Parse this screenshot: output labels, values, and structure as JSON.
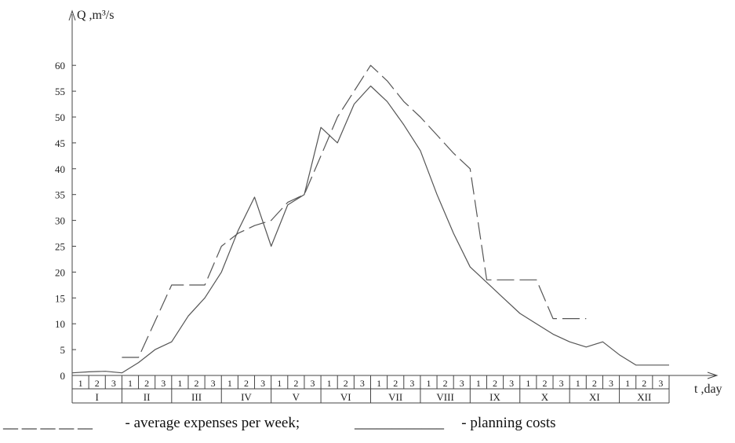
{
  "chart_data": {
    "type": "line",
    "ylabel": "Q ,m³/s",
    "xlabel": "t ,day",
    "ylim": [
      0,
      65
    ],
    "yticks": [
      0,
      5,
      10,
      15,
      20,
      25,
      30,
      35,
      40,
      45,
      50,
      55,
      60
    ],
    "x_unit": "decade (10-day period)",
    "decade_labels": [
      "1",
      "2",
      "3"
    ],
    "month_labels": [
      "I",
      "II",
      "III",
      "IV",
      "V",
      "VI",
      "VII",
      "VIII",
      "IX",
      "X",
      "XI",
      "XII"
    ],
    "series": [
      {
        "style": "solid",
        "x": [
          0,
          1,
          2,
          3,
          4,
          5,
          6,
          7,
          8,
          9,
          10,
          11,
          12,
          13,
          14,
          15,
          16,
          17,
          18,
          19,
          20,
          21,
          22,
          23,
          24,
          25,
          26,
          27,
          28,
          29,
          30,
          31,
          32,
          33,
          34,
          35,
          36
        ],
        "y": [
          0.5,
          0.7,
          0.8,
          0.5,
          2.5,
          5,
          6.5,
          11.5,
          15,
          20,
          28,
          34.5,
          25,
          33,
          35,
          48,
          45,
          52.5,
          56,
          53,
          48.5,
          43.5,
          35,
          27.5,
          21,
          18,
          15,
          12,
          10,
          8,
          6.5,
          5.5,
          6.5,
          4,
          2,
          2,
          2
        ]
      },
      {
        "style": "dashed",
        "x": [
          3,
          4,
          6,
          7,
          8,
          9,
          10,
          11,
          12,
          13,
          14,
          15,
          16,
          17,
          18,
          19,
          20,
          21,
          22,
          23,
          24,
          25,
          26,
          27,
          28,
          29,
          30,
          31
        ],
        "y": [
          3.5,
          3.5,
          17.5,
          17.5,
          17.5,
          25,
          27.5,
          29,
          30,
          33.5,
          35,
          42.5,
          50,
          55,
          60,
          57,
          53,
          50,
          46.5,
          43,
          40,
          18.5,
          18.5,
          18.5,
          18.5,
          11,
          11,
          11
        ]
      }
    ]
  },
  "legend": {
    "dash_line": "__ __ __ __ __",
    "dash_label": "  - average expenses per week;",
    "solid_line": "____________",
    "solid_label": "   - planning costs"
  }
}
